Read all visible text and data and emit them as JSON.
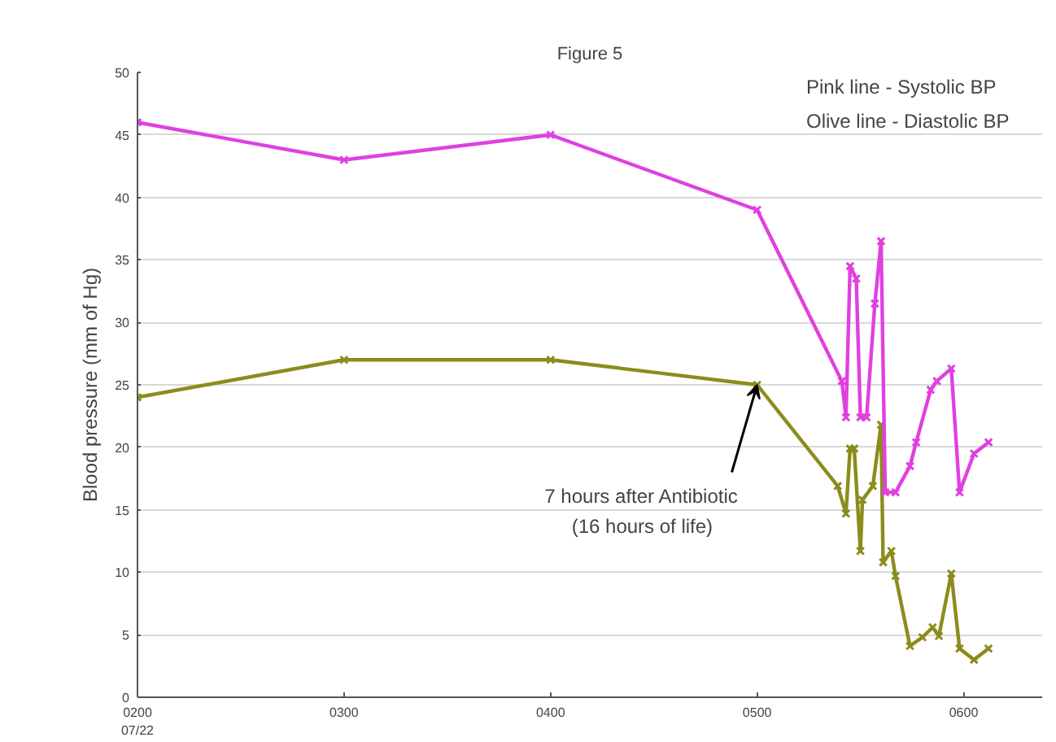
{
  "chart_data": {
    "type": "line",
    "title": "Figure 5",
    "ylabel": "Blood pressure (mm of Hg)",
    "annotations": [
      "Pink line - Systolic BP",
      "Olive line - Diastolic BP",
      {
        "text": "7 hours after Antibiotic\n(16 hours of life)",
        "x": 500,
        "y": 25
      }
    ],
    "xlim": [
      200,
      638
    ],
    "xticks": [
      {
        "value": 200,
        "label": "0200\n07/22"
      },
      {
        "value": 300,
        "label": "0300"
      },
      {
        "value": 400,
        "label": "0400"
      },
      {
        "value": 500,
        "label": "0500"
      },
      {
        "value": 600,
        "label": "0600"
      }
    ],
    "ylim": [
      0,
      50
    ],
    "yticks": [
      0,
      5,
      10,
      15,
      20,
      25,
      30,
      35,
      40,
      45,
      50
    ],
    "grid": "y",
    "marker": "cross",
    "series": [
      {
        "color": "#e040e0",
        "x": [
          200,
          300,
          400,
          500,
          541,
          543,
          545,
          548,
          550,
          553,
          557,
          560,
          562,
          567,
          574,
          577,
          584,
          587,
          594,
          598,
          605,
          612
        ],
        "values": [
          46,
          43,
          45,
          39,
          25.3,
          22.4,
          34.5,
          33.5,
          22.4,
          22.4,
          31.5,
          36.5,
          16.4,
          16.4,
          18.5,
          20.4,
          24.6,
          25.3,
          26.3,
          16.4,
          19.5,
          20.4
        ]
      },
      {
        "color": "#8c8c1c",
        "x": [
          200,
          300,
          400,
          500,
          539,
          543,
          545,
          547,
          550,
          551,
          556,
          560,
          561,
          565,
          567,
          574,
          580,
          585,
          588,
          594,
          598,
          605,
          612
        ],
        "values": [
          24,
          27,
          27,
          25,
          16.9,
          14.7,
          19.9,
          19.9,
          11.7,
          15.8,
          16.9,
          21.8,
          10.8,
          11.7,
          9.7,
          4.1,
          4.8,
          5.6,
          4.9,
          9.9,
          3.9,
          3.0,
          3.9
        ]
      }
    ]
  }
}
